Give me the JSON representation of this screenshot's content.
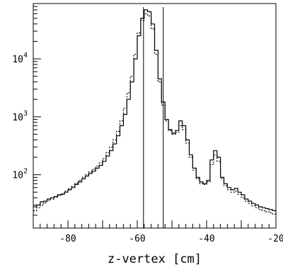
{
  "chart_data": {
    "type": "line",
    "title": "",
    "xlabel": "z-vertex [cm]",
    "ylabel": "",
    "xlim": [
      -90,
      -20
    ],
    "ylim": [
      12,
      90000
    ],
    "yscale": "log",
    "grid": false,
    "x_ticks": [
      {
        "value": -80,
        "label": "-80"
      },
      {
        "value": -60,
        "label": "-60"
      },
      {
        "value": -40,
        "label": "-40"
      },
      {
        "value": -20,
        "label": "-20"
      }
    ],
    "y_ticks": [
      {
        "value": 100,
        "base": "10",
        "exp": "2"
      },
      {
        "value": 1000,
        "base": "10",
        "exp": "3"
      },
      {
        "value": 10000,
        "base": "10",
        "exp": "4"
      }
    ],
    "vertical_lines": [
      -58.2,
      -52.5
    ],
    "series": [
      {
        "style": "solid",
        "x": [
          -90,
          -89,
          -88,
          -87,
          -86,
          -85,
          -84,
          -83,
          -82,
          -81,
          -80,
          -79,
          -78,
          -77,
          -76,
          -75,
          -74,
          -73,
          -72,
          -71,
          -70,
          -69,
          -68,
          -67,
          -66,
          -65,
          -64,
          -63,
          -62,
          -61,
          -60,
          -59,
          -58,
          -57,
          -56,
          -55,
          -54,
          -53,
          -52,
          -51,
          -50,
          -49,
          -48,
          -47,
          -46,
          -45,
          -44,
          -43,
          -42,
          -41,
          -40,
          -39,
          -38,
          -37,
          -36,
          -35,
          -34,
          -33,
          -32,
          -31,
          -30,
          -29,
          -28,
          -27,
          -26,
          -25,
          -24,
          -23,
          -22,
          -21,
          -20
        ],
        "y": [
          28,
          30,
          34,
          35,
          38,
          40,
          42,
          45,
          46,
          50,
          55,
          60,
          68,
          75,
          85,
          95,
          105,
          115,
          130,
          145,
          170,
          210,
          260,
          340,
          470,
          700,
          1100,
          2000,
          4000,
          10000,
          25000,
          50000,
          70000,
          65000,
          40000,
          14000,
          4500,
          1800,
          900,
          600,
          520,
          580,
          850,
          700,
          400,
          220,
          130,
          90,
          75,
          70,
          80,
          180,
          260,
          200,
          90,
          70,
          60,
          55,
          58,
          50,
          45,
          38,
          35,
          32,
          30,
          28,
          27,
          26,
          25,
          24,
          23
        ]
      },
      {
        "style": "dashed",
        "x": [
          -90,
          -89,
          -88,
          -87,
          -86,
          -85,
          -84,
          -83,
          -82,
          -81,
          -80,
          -79,
          -78,
          -77,
          -76,
          -75,
          -74,
          -73,
          -72,
          -71,
          -70,
          -69,
          -68,
          -67,
          -66,
          -65,
          -64,
          -63,
          -62,
          -61,
          -60,
          -59,
          -58,
          -57,
          -56,
          -55,
          -54,
          -53,
          -52,
          -51,
          -50,
          -49,
          -48,
          -47,
          -46,
          -45,
          -44,
          -43,
          -42,
          -41,
          -40,
          -39,
          -38,
          -37,
          -36,
          -35,
          -34,
          -33,
          -32,
          -31,
          -30,
          -29,
          -28,
          -27,
          -26,
          -25,
          -24,
          -23,
          -22,
          -21,
          -20
        ],
        "y": [
          24,
          27,
          30,
          33,
          36,
          38,
          41,
          44,
          47,
          52,
          57,
          63,
          71,
          80,
          90,
          100,
          112,
          125,
          140,
          160,
          190,
          240,
          300,
          400,
          560,
          850,
          1400,
          2600,
          5000,
          12000,
          28000,
          46000,
          60000,
          55000,
          33000,
          12000,
          4000,
          1600,
          850,
          580,
          500,
          540,
          700,
          600,
          350,
          200,
          120,
          85,
          70,
          68,
          75,
          150,
          220,
          170,
          85,
          65,
          55,
          50,
          52,
          46,
          40,
          35,
          32,
          29,
          27,
          25,
          24,
          23,
          22,
          21,
          20
        ]
      }
    ]
  }
}
